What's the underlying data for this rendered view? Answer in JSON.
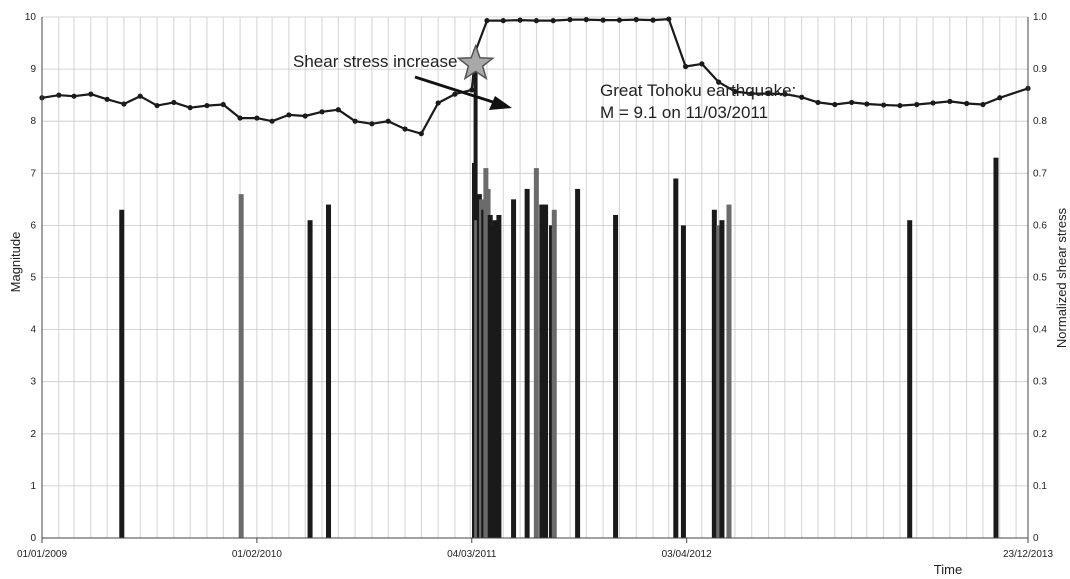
{
  "chart_data": {
    "type": "bar",
    "title": "",
    "xlabel": "Time",
    "ylabel": "Magnitude",
    "y2label": "Normalized shear stress",
    "ylim": [
      0,
      10
    ],
    "y2lim": [
      0,
      1.0
    ],
    "xlim": [
      "2009-01-01",
      "2013-12-23"
    ],
    "grid": true,
    "yticks": [
      "0",
      "1",
      "2",
      "3",
      "4",
      "5",
      "6",
      "7",
      "8",
      "9",
      "10"
    ],
    "y2ticks": [
      "0",
      "0.1",
      "0.2",
      "0.3",
      "0.4",
      "0.5",
      "0.6",
      "0.7",
      "0.8",
      "0.9",
      "1.0"
    ],
    "xticks": [
      {
        "date": "2009-01-01",
        "label": "01/01/2009"
      },
      {
        "date": "2010-02-01",
        "label": "01/02/2010"
      },
      {
        "date": "2011-03-04",
        "label": "04/03/2011"
      },
      {
        "date": "2012-04-03",
        "label": "03/04/2012"
      },
      {
        "date": "2013-12-23",
        "label": "23/12/2013"
      }
    ],
    "earthquakes": [
      {
        "date": "2009-05-28",
        "magnitude": 6.3,
        "shade": "dark"
      },
      {
        "date": "2010-01-03",
        "magnitude": 6.6,
        "shade": "gray"
      },
      {
        "date": "2010-05-10",
        "magnitude": 6.1,
        "shade": "dark"
      },
      {
        "date": "2010-06-13",
        "magnitude": 6.4,
        "shade": "dark"
      },
      {
        "date": "2011-03-09",
        "magnitude": 7.2,
        "shade": "dark"
      },
      {
        "date": "2011-03-11",
        "magnitude": 9.1,
        "shade": "dark"
      },
      {
        "date": "2011-03-13",
        "magnitude": 6.1,
        "shade": "gray"
      },
      {
        "date": "2011-03-18",
        "magnitude": 6.6,
        "shade": "dark"
      },
      {
        "date": "2011-03-22",
        "magnitude": 6.5,
        "shade": "gray"
      },
      {
        "date": "2011-03-26",
        "magnitude": 6.3,
        "shade": "dark"
      },
      {
        "date": "2011-03-30",
        "magnitude": 7.1,
        "shade": "gray"
      },
      {
        "date": "2011-04-03",
        "magnitude": 6.7,
        "shade": "gray"
      },
      {
        "date": "2011-04-07",
        "magnitude": 6.2,
        "shade": "dark"
      },
      {
        "date": "2011-04-11",
        "magnitude": 6.0,
        "shade": "dark"
      },
      {
        "date": "2011-04-16",
        "magnitude": 6.1,
        "shade": "dark"
      },
      {
        "date": "2011-04-23",
        "magnitude": 6.2,
        "shade": "dark"
      },
      {
        "date": "2011-05-20",
        "magnitude": 6.5,
        "shade": "dark"
      },
      {
        "date": "2011-06-14",
        "magnitude": 6.7,
        "shade": "dark"
      },
      {
        "date": "2011-07-01",
        "magnitude": 7.1,
        "shade": "gray"
      },
      {
        "date": "2011-07-11",
        "magnitude": 6.4,
        "shade": "dark"
      },
      {
        "date": "2011-07-18",
        "magnitude": 6.4,
        "shade": "dark"
      },
      {
        "date": "2011-07-29",
        "magnitude": 6.0,
        "shade": "dark"
      },
      {
        "date": "2011-08-03",
        "magnitude": 6.3,
        "shade": "gray"
      },
      {
        "date": "2011-09-15",
        "magnitude": 6.7,
        "shade": "dark"
      },
      {
        "date": "2011-11-24",
        "magnitude": 6.2,
        "shade": "dark"
      },
      {
        "date": "2012-03-14",
        "magnitude": 6.9,
        "shade": "dark"
      },
      {
        "date": "2012-03-28",
        "magnitude": 6.0,
        "shade": "dark"
      },
      {
        "date": "2012-05-24",
        "magnitude": 6.3,
        "shade": "dark"
      },
      {
        "date": "2012-06-01",
        "magnitude": 6.0,
        "shade": "gray"
      },
      {
        "date": "2012-06-07",
        "magnitude": 6.1,
        "shade": "dark"
      },
      {
        "date": "2012-06-20",
        "magnitude": 6.4,
        "shade": "gray"
      },
      {
        "date": "2013-05-19",
        "magnitude": 6.1,
        "shade": "dark"
      },
      {
        "date": "2013-10-25",
        "magnitude": 7.3,
        "shade": "dark"
      }
    ],
    "shear_stress": [
      {
        "date": "2009-01-01",
        "value": 0.845
      },
      {
        "date": "2009-02-01",
        "value": 0.85
      },
      {
        "date": "2009-03-01",
        "value": 0.848
      },
      {
        "date": "2009-04-01",
        "value": 0.852
      },
      {
        "date": "2009-05-01",
        "value": 0.842
      },
      {
        "date": "2009-06-01",
        "value": 0.833
      },
      {
        "date": "2009-07-01",
        "value": 0.848
      },
      {
        "date": "2009-08-01",
        "value": 0.83
      },
      {
        "date": "2009-09-01",
        "value": 0.836
      },
      {
        "date": "2009-10-01",
        "value": 0.826
      },
      {
        "date": "2009-11-01",
        "value": 0.83
      },
      {
        "date": "2009-12-01",
        "value": 0.832
      },
      {
        "date": "2010-01-01",
        "value": 0.806
      },
      {
        "date": "2010-02-01",
        "value": 0.806
      },
      {
        "date": "2010-03-01",
        "value": 0.8
      },
      {
        "date": "2010-04-01",
        "value": 0.812
      },
      {
        "date": "2010-05-01",
        "value": 0.81
      },
      {
        "date": "2010-06-01",
        "value": 0.818
      },
      {
        "date": "2010-07-01",
        "value": 0.822
      },
      {
        "date": "2010-08-01",
        "value": 0.8
      },
      {
        "date": "2010-09-01",
        "value": 0.795
      },
      {
        "date": "2010-10-01",
        "value": 0.8
      },
      {
        "date": "2010-11-01",
        "value": 0.785
      },
      {
        "date": "2010-12-01",
        "value": 0.776
      },
      {
        "date": "2011-01-01",
        "value": 0.835
      },
      {
        "date": "2011-02-01",
        "value": 0.852
      },
      {
        "date": "2011-03-04",
        "value": 0.86
      },
      {
        "date": "2011-03-11",
        "value": 0.935
      },
      {
        "date": "2011-04-01",
        "value": 0.993
      },
      {
        "date": "2011-05-01",
        "value": 0.993
      },
      {
        "date": "2011-06-01",
        "value": 0.994
      },
      {
        "date": "2011-07-01",
        "value": 0.993
      },
      {
        "date": "2011-08-01",
        "value": 0.993
      },
      {
        "date": "2011-09-01",
        "value": 0.995
      },
      {
        "date": "2011-10-01",
        "value": 0.995
      },
      {
        "date": "2011-11-01",
        "value": 0.994
      },
      {
        "date": "2011-12-01",
        "value": 0.994
      },
      {
        "date": "2012-01-01",
        "value": 0.995
      },
      {
        "date": "2012-02-01",
        "value": 0.994
      },
      {
        "date": "2012-03-01",
        "value": 0.996
      },
      {
        "date": "2012-04-01",
        "value": 0.905
      },
      {
        "date": "2012-05-01",
        "value": 0.91
      },
      {
        "date": "2012-06-01",
        "value": 0.875
      },
      {
        "date": "2012-07-01",
        "value": 0.857
      },
      {
        "date": "2012-08-01",
        "value": 0.853
      },
      {
        "date": "2012-09-01",
        "value": 0.853
      },
      {
        "date": "2012-10-01",
        "value": 0.852
      },
      {
        "date": "2012-11-01",
        "value": 0.846
      },
      {
        "date": "2012-12-01",
        "value": 0.836
      },
      {
        "date": "2013-01-01",
        "value": 0.832
      },
      {
        "date": "2013-02-01",
        "value": 0.836
      },
      {
        "date": "2013-03-01",
        "value": 0.833
      },
      {
        "date": "2013-04-01",
        "value": 0.831
      },
      {
        "date": "2013-05-01",
        "value": 0.83
      },
      {
        "date": "2013-06-01",
        "value": 0.832
      },
      {
        "date": "2013-07-01",
        "value": 0.835
      },
      {
        "date": "2013-08-01",
        "value": 0.838
      },
      {
        "date": "2013-09-01",
        "value": 0.834
      },
      {
        "date": "2013-10-01",
        "value": 0.832
      },
      {
        "date": "2013-11-01",
        "value": 0.845
      },
      {
        "date": "2013-12-23",
        "value": 0.863
      }
    ],
    "annotations": {
      "shear_label": "Shear stress increase",
      "event_line1": "Great Tohoku earthquake:",
      "event_line2": "M = 9.1 on 11/03/2011"
    },
    "colors": {
      "bar_dark": "#1a1a1a",
      "bar_gray": "#6b6b6b",
      "line": "#1a1a1a",
      "grid": "#c8c8c8",
      "star_fill": "#a8a8a8"
    }
  }
}
